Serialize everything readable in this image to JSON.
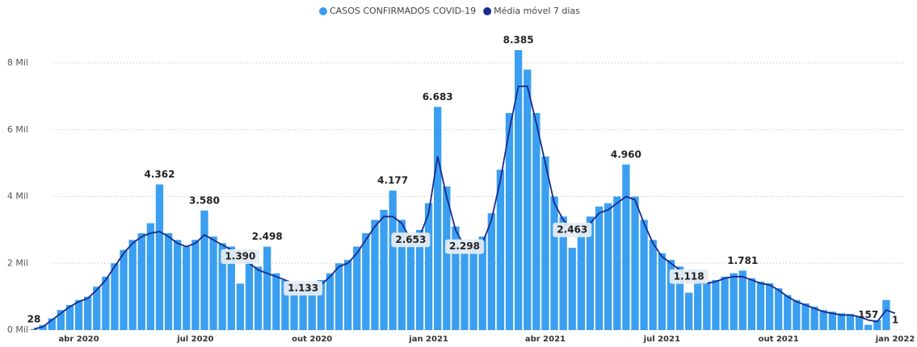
{
  "chart_data": {
    "type": "bar",
    "legend": "top",
    "grid": true,
    "ylim": [
      0,
      8500
    ],
    "yticks": [
      {
        "value": 0,
        "label": "0 Mil"
      },
      {
        "value": 2000,
        "label": "2 Mil"
      },
      {
        "value": 4000,
        "label": "4 Mil"
      },
      {
        "value": 6000,
        "label": "6 Mil"
      },
      {
        "value": 8000,
        "label": "8 Mil"
      }
    ],
    "categories": [
      null,
      null,
      null,
      null,
      null,
      "abr 2020",
      null,
      null,
      null,
      null,
      null,
      null,
      null,
      null,
      null,
      null,
      null,
      null,
      "jul 2020",
      null,
      null,
      null,
      null,
      null,
      null,
      null,
      null,
      null,
      null,
      null,
      null,
      "out 2020",
      null,
      null,
      null,
      null,
      null,
      null,
      null,
      null,
      null,
      null,
      null,
      null,
      "jan 2021",
      null,
      null,
      null,
      null,
      null,
      null,
      null,
      null,
      null,
      null,
      null,
      null,
      "abr 2021",
      null,
      null,
      null,
      null,
      null,
      null,
      null,
      null,
      null,
      null,
      null,
      null,
      "jul 2021",
      null,
      null,
      null,
      null,
      null,
      null,
      null,
      null,
      null,
      null,
      null,
      null,
      "out 2021",
      null,
      null,
      null,
      null,
      null,
      null,
      null,
      null,
      null,
      null,
      null,
      null,
      "jan 2022"
    ],
    "series": [
      {
        "name": "CASOS CONFIRMADOS COVID-19",
        "type": "bar",
        "color": "#3a9ff0",
        "values": [
          28,
          150,
          350,
          600,
          750,
          900,
          1000,
          1300,
          1600,
          2000,
          2400,
          2700,
          2900,
          3200,
          4362,
          2900,
          2700,
          2500,
          2700,
          3580,
          2800,
          2600,
          2500,
          1390,
          2100,
          1900,
          2498,
          1700,
          1500,
          1400,
          1133,
          1300,
          1500,
          1700,
          2000,
          2100,
          2500,
          2900,
          3300,
          3600,
          4177,
          3300,
          2653,
          3000,
          3800,
          6683,
          4300,
          3100,
          2298,
          2500,
          2800,
          3500,
          4800,
          6500,
          8385,
          7800,
          6500,
          5200,
          4000,
          3400,
          2463,
          3000,
          3400,
          3700,
          3800,
          4000,
          4960,
          4000,
          3300,
          2700,
          2300,
          2100,
          1900,
          1118,
          1500,
          1450,
          1500,
          1600,
          1700,
          1781,
          1550,
          1450,
          1400,
          1250,
          1050,
          900,
          800,
          700,
          600,
          550,
          500,
          480,
          420,
          157,
          300,
          900,
          1
        ],
        "value_labels": [
          "28",
          null,
          null,
          null,
          null,
          null,
          null,
          null,
          null,
          null,
          null,
          null,
          null,
          null,
          "4.362",
          null,
          null,
          null,
          null,
          "3.580",
          null,
          null,
          null,
          "1.390",
          null,
          null,
          "2.498",
          null,
          null,
          null,
          "1.133",
          null,
          null,
          null,
          null,
          null,
          null,
          null,
          null,
          null,
          "4.177",
          null,
          "2.653",
          null,
          null,
          "6.683",
          null,
          null,
          "2.298",
          null,
          null,
          null,
          null,
          null,
          "8.385",
          null,
          null,
          null,
          null,
          null,
          "2.463",
          null,
          null,
          null,
          null,
          null,
          "4.960",
          null,
          null,
          null,
          null,
          null,
          null,
          "1.118",
          null,
          null,
          null,
          null,
          null,
          "1.781",
          null,
          null,
          null,
          null,
          null,
          null,
          null,
          null,
          null,
          null,
          null,
          null,
          null,
          "157",
          null,
          null,
          "1"
        ]
      },
      {
        "name": "Média móvel 7 dias",
        "type": "line",
        "color": "#1a2a8c",
        "values": [
          30,
          100,
          300,
          500,
          700,
          850,
          950,
          1200,
          1500,
          1900,
          2300,
          2600,
          2800,
          2900,
          2950,
          2800,
          2600,
          2500,
          2600,
          2850,
          2700,
          2550,
          2400,
          2200,
          2000,
          1800,
          1700,
          1600,
          1500,
          1350,
          1250,
          1200,
          1350,
          1600,
          1900,
          2000,
          2300,
          2700,
          3100,
          3400,
          3400,
          3200,
          2700,
          2800,
          3500,
          5200,
          4000,
          3000,
          2500,
          2400,
          2600,
          3300,
          4500,
          6000,
          7300,
          7300,
          6200,
          5000,
          3800,
          3300,
          3000,
          2900,
          3200,
          3500,
          3600,
          3800,
          4000,
          3900,
          3200,
          2600,
          2200,
          2000,
          1800,
          1600,
          1400,
          1400,
          1450,
          1550,
          1600,
          1600,
          1500,
          1400,
          1350,
          1200,
          1000,
          850,
          750,
          650,
          550,
          500,
          450,
          450,
          400,
          300,
          250,
          600,
          500
        ]
      }
    ]
  }
}
